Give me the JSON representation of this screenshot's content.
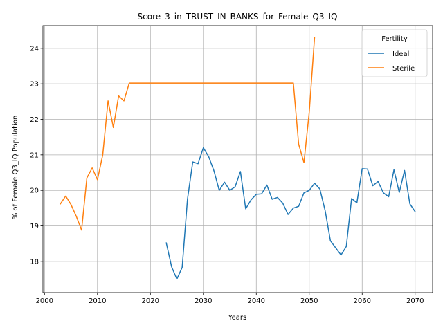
{
  "chart_data": {
    "type": "line",
    "title": "Score_3_in_TRUST_IN_BANKS_for_Female_Q3_IQ",
    "xlabel": "Years",
    "ylabel": "% of Female Q3_IQ Population",
    "xlim": [
      1999.7,
      2073.3
    ],
    "ylim": [
      17.12,
      24.64
    ],
    "xticks": [
      2000,
      2010,
      2020,
      2030,
      2040,
      2050,
      2060,
      2070
    ],
    "yticks": [
      18,
      19,
      20,
      21,
      22,
      23,
      24
    ],
    "grid": true,
    "legend": {
      "title": "Fertility",
      "placement": "upper right"
    },
    "series": [
      {
        "name": "Ideal",
        "color": "#1f77b4",
        "x": [
          2023,
          2024,
          2025,
          2026,
          2027,
          2028,
          2029,
          2030,
          2031,
          2032,
          2033,
          2034,
          2035,
          2036,
          2037,
          2038,
          2039,
          2040,
          2041,
          2042,
          2043,
          2044,
          2045,
          2046,
          2047,
          2048,
          2049,
          2050,
          2051,
          2052,
          2053,
          2054,
          2055,
          2056,
          2057,
          2058,
          2059,
          2060,
          2061,
          2062,
          2063,
          2064,
          2065,
          2066,
          2067,
          2068,
          2069,
          2070
        ],
        "y": [
          18.52,
          17.85,
          17.5,
          17.83,
          19.75,
          20.8,
          20.75,
          21.2,
          20.95,
          20.55,
          20.0,
          20.23,
          20.0,
          20.1,
          20.53,
          19.48,
          19.73,
          19.89,
          19.9,
          20.15,
          19.75,
          19.8,
          19.64,
          19.32,
          19.5,
          19.55,
          19.93,
          20.0,
          20.2,
          20.04,
          19.43,
          18.58,
          18.38,
          18.18,
          18.42,
          19.77,
          19.65,
          20.61,
          20.6,
          20.13,
          20.25,
          19.93,
          19.82,
          20.58,
          19.94,
          20.56,
          19.62,
          19.4
        ]
      },
      {
        "name": "Sterile",
        "color": "#ff7f0e",
        "x": [
          2003,
          2004,
          2005,
          2006,
          2007,
          2008,
          2009,
          2010,
          2011,
          2012,
          2013,
          2014,
          2015,
          2016,
          2017,
          2018,
          2019,
          2020,
          2021,
          2022,
          2023,
          2024,
          2025,
          2026,
          2027,
          2028,
          2029,
          2030,
          2031,
          2032,
          2033,
          2034,
          2035,
          2036,
          2037,
          2038,
          2039,
          2040,
          2041,
          2042,
          2043,
          2044,
          2045,
          2046,
          2047,
          2048,
          2049,
          2050,
          2051
        ],
        "y": [
          19.62,
          19.84,
          19.6,
          19.27,
          18.88,
          20.35,
          20.63,
          20.3,
          21.0,
          22.52,
          21.77,
          22.66,
          22.52,
          23.02,
          23.02,
          23.02,
          23.02,
          23.02,
          23.02,
          23.02,
          23.02,
          23.02,
          23.02,
          23.02,
          23.02,
          23.02,
          23.02,
          23.02,
          23.02,
          23.02,
          23.02,
          23.02,
          23.02,
          23.02,
          23.02,
          23.02,
          23.02,
          23.02,
          23.02,
          23.02,
          23.02,
          23.02,
          23.02,
          23.02,
          23.02,
          21.3,
          20.78,
          22.2,
          24.3
        ]
      }
    ]
  }
}
